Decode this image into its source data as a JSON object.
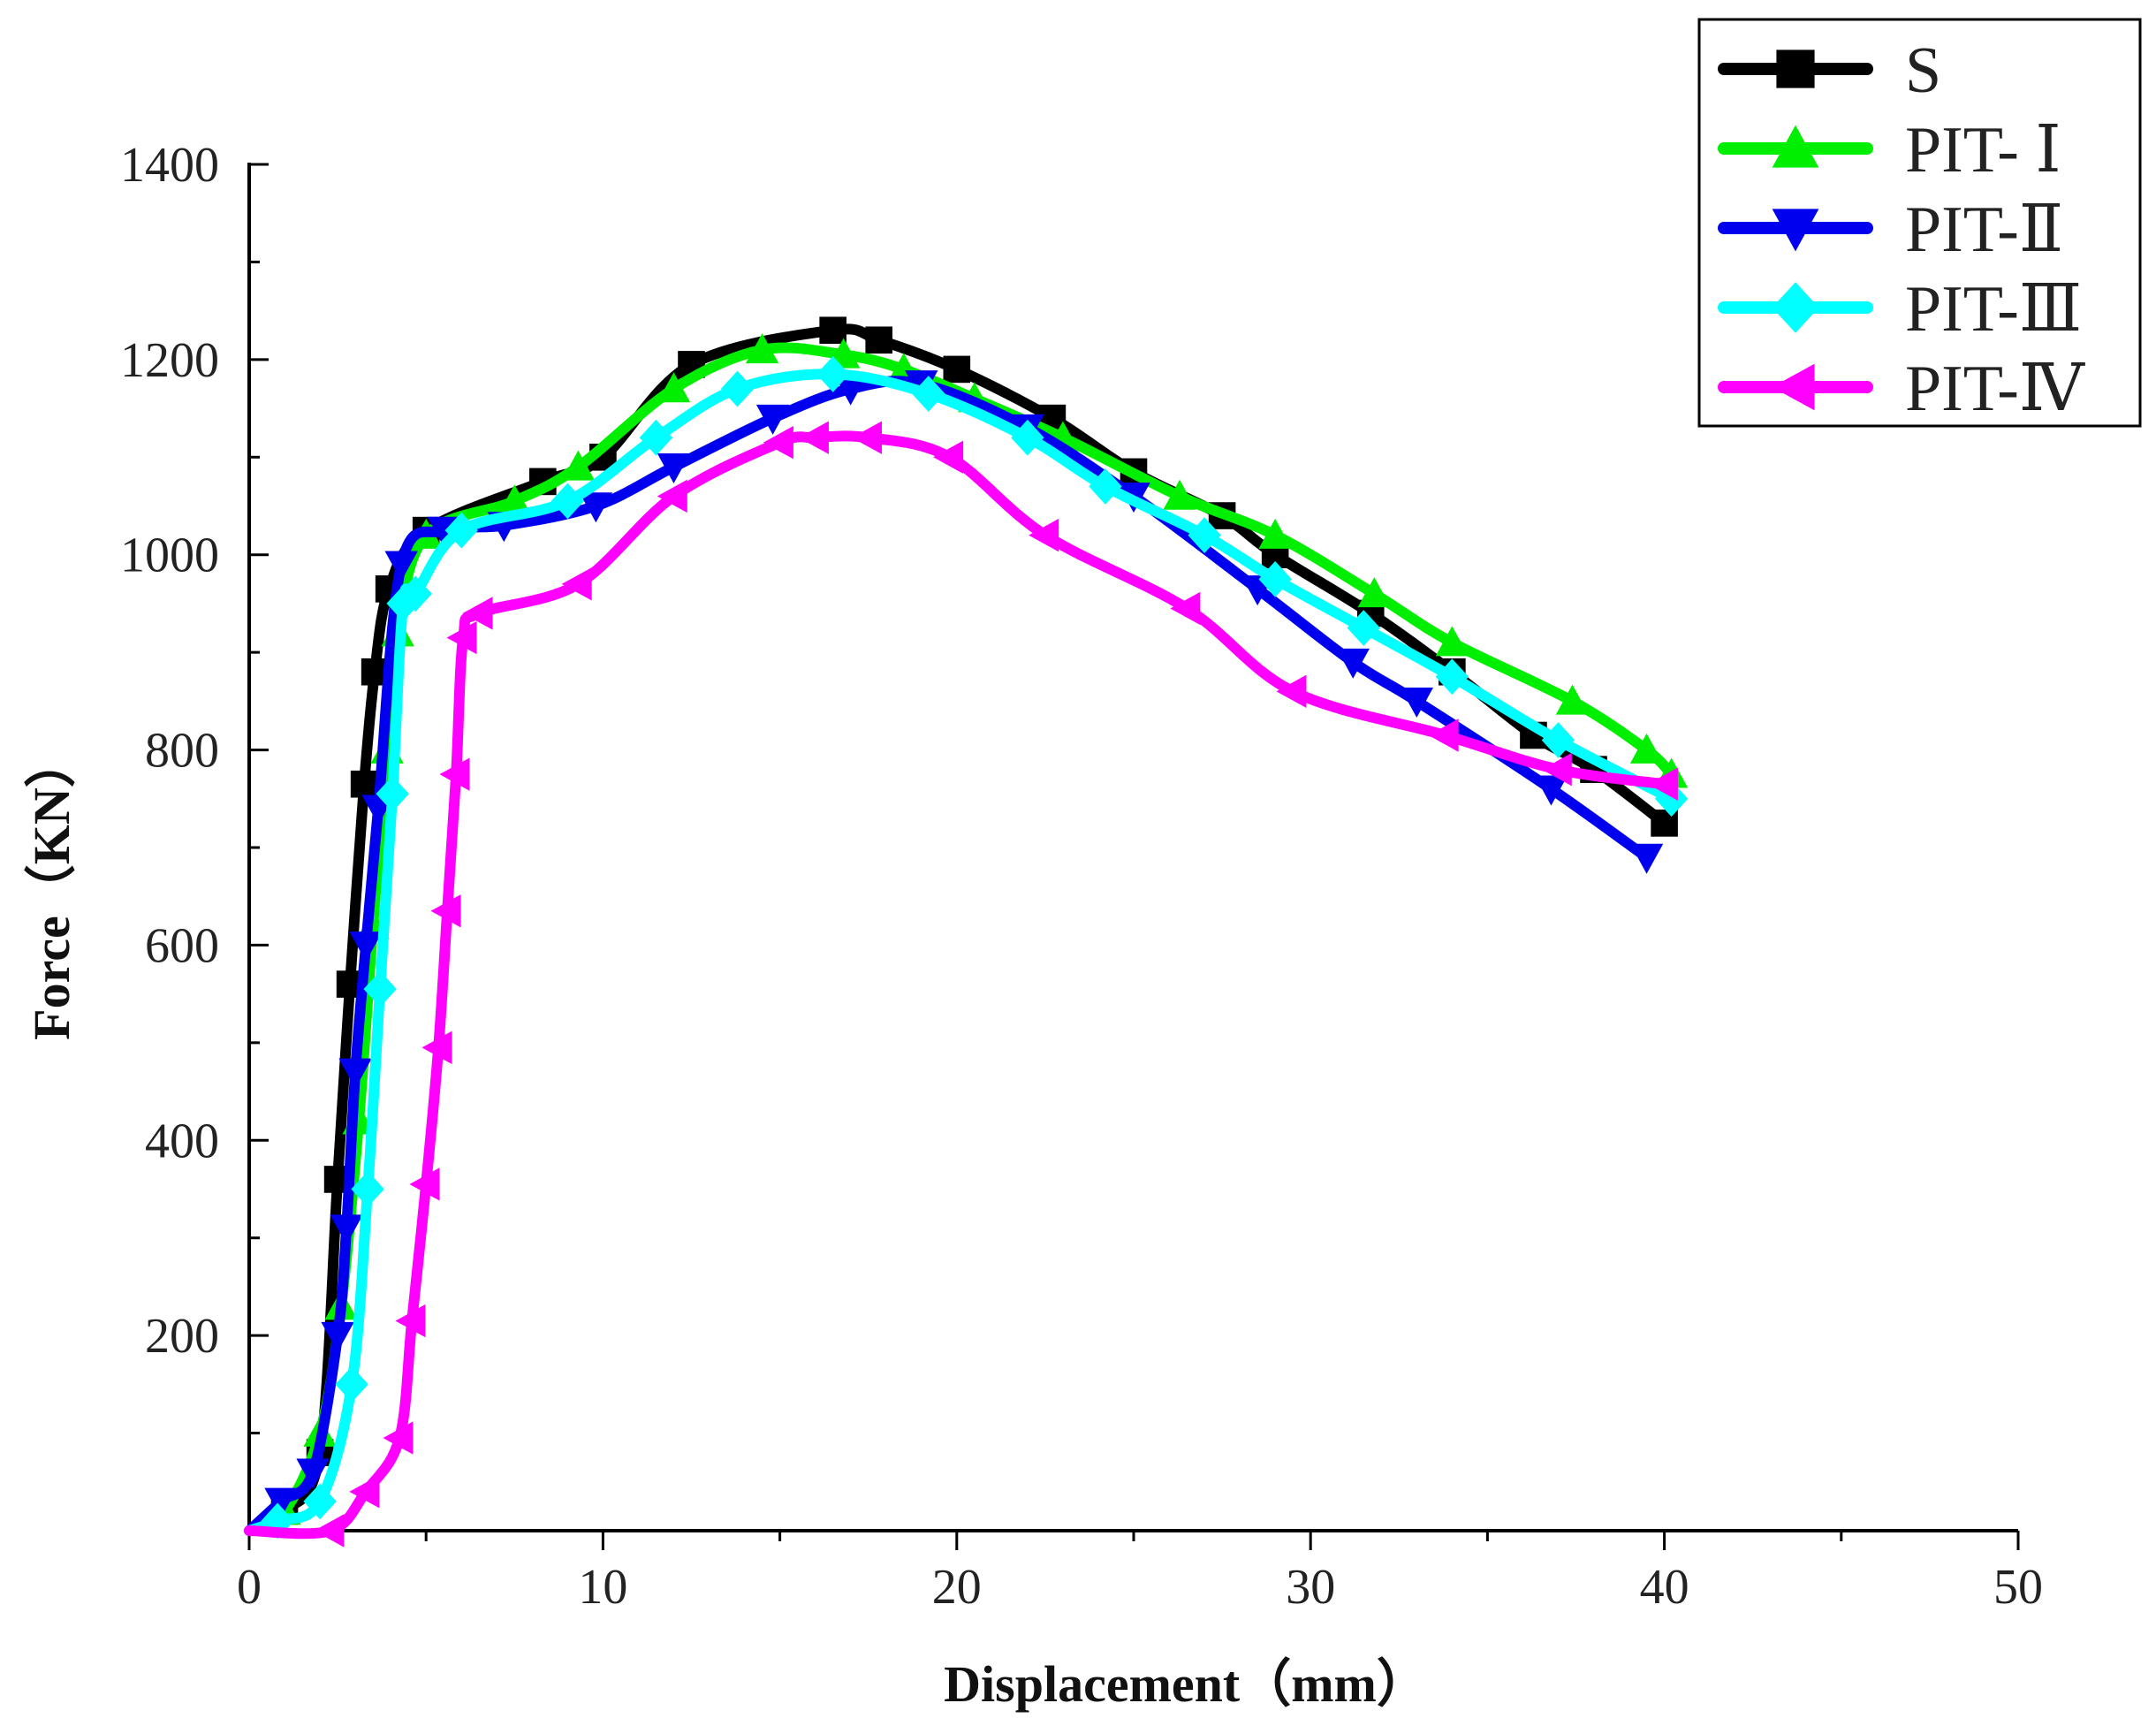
{
  "chart_data": {
    "type": "line",
    "title": "",
    "xlabel": "Displacement（mm）",
    "ylabel": "Force（KN）",
    "xlim": [
      0,
      50
    ],
    "ylim": [
      0,
      1400
    ],
    "x_ticks": [
      0,
      10,
      20,
      30,
      40,
      50
    ],
    "x_tick_labels": [
      "0",
      "10",
      "20",
      "30",
      "40",
      "50"
    ],
    "y_ticks": [
      200,
      400,
      600,
      800,
      1000,
      1200,
      1400
    ],
    "y_tick_labels": [
      "200",
      "400",
      "600",
      "800",
      "1000",
      "1200",
      "1400"
    ],
    "grid": false,
    "legend_position": "top-right",
    "series": [
      {
        "name": "S",
        "color": "#000000",
        "marker": "square",
        "x": [
          0,
          1.0,
          2.0,
          2.5,
          2.85,
          3.25,
          3.55,
          3.95,
          5.0,
          8.3,
          10.0,
          12.5,
          16.5,
          17.8,
          20.0,
          22.7,
          25.0,
          27.5,
          29.0,
          31.7,
          34.0,
          36.3,
          38.0,
          40.0
        ],
        "y": [
          0,
          20,
          80,
          360,
          560,
          765,
          880,
          965,
          1025,
          1075,
          1100,
          1195,
          1230,
          1220,
          1190,
          1140,
          1085,
          1040,
          1000,
          940,
          880,
          815,
          780,
          725
        ]
      },
      {
        "name": "PIT- Ⅰ",
        "color": "#00ee00",
        "marker": "triangle-up",
        "x": [
          0,
          1.0,
          2.0,
          2.6,
          3.1,
          3.5,
          3.9,
          4.2,
          5.0,
          7.5,
          9.3,
          12.0,
          14.5,
          16.8,
          18.5,
          20.5,
          23.0,
          26.3,
          29.0,
          31.8,
          34.0,
          37.4,
          39.5,
          40.2
        ],
        "y": [
          0,
          20,
          100,
          230,
          420,
          620,
          800,
          920,
          1020,
          1055,
          1090,
          1170,
          1210,
          1205,
          1190,
          1160,
          1120,
          1060,
          1020,
          960,
          910,
          850,
          800,
          775
        ]
      },
      {
        "name": "PIT-Ⅱ",
        "color": "#0000ee",
        "marker": "triangle-down",
        "x": [
          0,
          0.9,
          1.8,
          2.5,
          2.75,
          3.0,
          3.3,
          3.65,
          4.3,
          5.5,
          7.2,
          9.8,
          12.0,
          14.8,
          17.0,
          19.0,
          22.0,
          25.0,
          28.5,
          31.2,
          33.0,
          36.8,
          39.5
        ],
        "y": [
          0,
          30,
          60,
          200,
          310,
          470,
          600,
          740,
          990,
          1025,
          1030,
          1050,
          1090,
          1140,
          1170,
          1175,
          1130,
          1060,
          965,
          890,
          850,
          760,
          690
        ]
      },
      {
        "name": "PIT-Ⅲ",
        "color": "#00ffff",
        "marker": "diamond",
        "x": [
          0,
          0.8,
          2.0,
          2.9,
          3.35,
          3.7,
          4.05,
          4.35,
          4.7,
          6.0,
          9.0,
          11.5,
          13.8,
          16.5,
          19.2,
          22.0,
          24.2,
          27.0,
          29.0,
          31.5,
          34.0,
          37.0,
          40.2
        ],
        "y": [
          0,
          10,
          30,
          150,
          350,
          555,
          755,
          950,
          960,
          1025,
          1055,
          1120,
          1170,
          1185,
          1165,
          1120,
          1070,
          1020,
          975,
          925,
          875,
          810,
          750
        ]
      },
      {
        "name": "PIT-Ⅳ",
        "color": "#ff00ff",
        "marker": "triangle-left",
        "x": [
          0,
          2.3,
          3.3,
          4.25,
          4.6,
          5.0,
          5.35,
          5.6,
          5.85,
          6.05,
          6.5,
          9.3,
          12.0,
          15.0,
          16.0,
          17.5,
          19.8,
          22.5,
          26.5,
          29.5,
          33.8,
          37.0,
          40.0
        ],
        "y": [
          0,
          0,
          40,
          95,
          215,
          355,
          495,
          635,
          775,
          915,
          940,
          970,
          1060,
          1115,
          1120,
          1120,
          1100,
          1020,
          945,
          860,
          815,
          780,
          765
        ]
      }
    ]
  }
}
